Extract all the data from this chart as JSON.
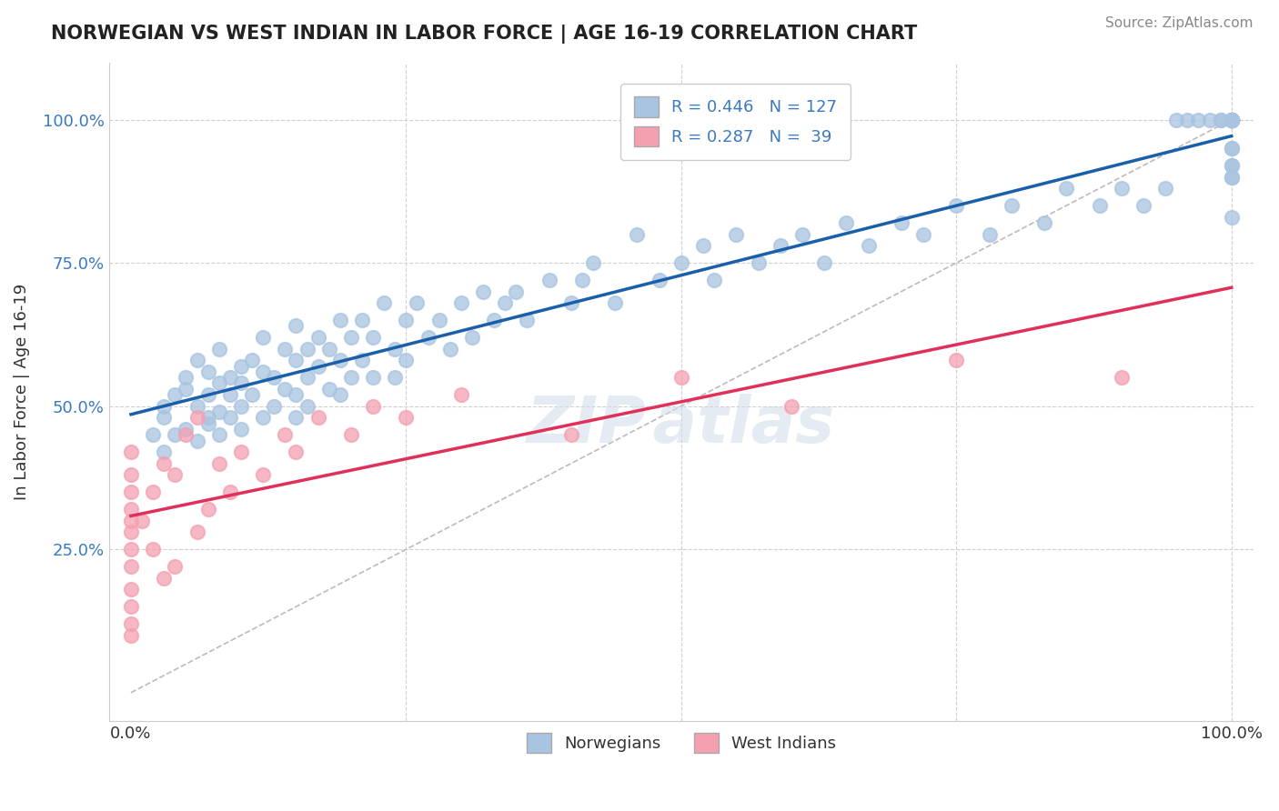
{
  "title": "NORWEGIAN VS WEST INDIAN IN LABOR FORCE | AGE 16-19 CORRELATION CHART",
  "source": "Source: ZipAtlas.com",
  "ylabel": "In Labor Force | Age 16-19",
  "xlim": [
    -0.02,
    1.02
  ],
  "ylim": [
    -0.05,
    1.1
  ],
  "norwegian_color": "#a8c4e0",
  "west_indian_color": "#f4a0b0",
  "norwegian_line_color": "#1a5faa",
  "west_indian_line_color": "#e0305a",
  "diagonal_color": "#c0c0c0",
  "R_norwegian": 0.446,
  "N_norwegian": 127,
  "R_west_indian": 0.287,
  "N_west_indian": 39,
  "legend_box_color_norwegian": "#a8c4e0",
  "legend_box_color_west_indian": "#f4a0b0",
  "legend_text_color": "#3a7abf",
  "title_color": "#222222",
  "grid_color": "#d0d0d0",
  "background_color": "#ffffff",
  "norwegian_x": [
    0.02,
    0.03,
    0.03,
    0.03,
    0.04,
    0.04,
    0.05,
    0.05,
    0.05,
    0.06,
    0.06,
    0.06,
    0.07,
    0.07,
    0.07,
    0.07,
    0.08,
    0.08,
    0.08,
    0.08,
    0.09,
    0.09,
    0.09,
    0.1,
    0.1,
    0.1,
    0.1,
    0.11,
    0.11,
    0.12,
    0.12,
    0.12,
    0.13,
    0.13,
    0.14,
    0.14,
    0.15,
    0.15,
    0.15,
    0.15,
    0.16,
    0.16,
    0.16,
    0.17,
    0.17,
    0.18,
    0.18,
    0.19,
    0.19,
    0.19,
    0.2,
    0.2,
    0.21,
    0.21,
    0.22,
    0.22,
    0.23,
    0.24,
    0.24,
    0.25,
    0.25,
    0.26,
    0.27,
    0.28,
    0.29,
    0.3,
    0.31,
    0.32,
    0.33,
    0.34,
    0.35,
    0.36,
    0.38,
    0.4,
    0.41,
    0.42,
    0.44,
    0.46,
    0.48,
    0.5,
    0.52,
    0.53,
    0.55,
    0.57,
    0.59,
    0.61,
    0.63,
    0.65,
    0.67,
    0.7,
    0.72,
    0.75,
    0.78,
    0.8,
    0.83,
    0.85,
    0.88,
    0.9,
    0.92,
    0.94,
    0.95,
    0.96,
    0.97,
    0.98,
    0.99,
    0.99,
    1.0,
    1.0,
    1.0,
    1.0,
    1.0,
    1.0,
    1.0,
    1.0,
    1.0,
    1.0,
    1.0,
    1.0,
    1.0,
    1.0,
    1.0,
    1.0,
    1.0,
    1.0,
    1.0,
    1.0,
    1.0
  ],
  "norwegian_y": [
    0.45,
    0.48,
    0.42,
    0.5,
    0.52,
    0.45,
    0.53,
    0.46,
    0.55,
    0.5,
    0.44,
    0.58,
    0.52,
    0.47,
    0.56,
    0.48,
    0.54,
    0.49,
    0.6,
    0.45,
    0.55,
    0.52,
    0.48,
    0.57,
    0.5,
    0.54,
    0.46,
    0.58,
    0.52,
    0.56,
    0.48,
    0.62,
    0.55,
    0.5,
    0.6,
    0.53,
    0.58,
    0.52,
    0.64,
    0.48,
    0.6,
    0.55,
    0.5,
    0.62,
    0.57,
    0.6,
    0.53,
    0.65,
    0.58,
    0.52,
    0.62,
    0.55,
    0.65,
    0.58,
    0.62,
    0.55,
    0.68,
    0.6,
    0.55,
    0.65,
    0.58,
    0.68,
    0.62,
    0.65,
    0.6,
    0.68,
    0.62,
    0.7,
    0.65,
    0.68,
    0.7,
    0.65,
    0.72,
    0.68,
    0.72,
    0.75,
    0.68,
    0.8,
    0.72,
    0.75,
    0.78,
    0.72,
    0.8,
    0.75,
    0.78,
    0.8,
    0.75,
    0.82,
    0.78,
    0.82,
    0.8,
    0.85,
    0.8,
    0.85,
    0.82,
    0.88,
    0.85,
    0.88,
    0.85,
    0.88,
    1.0,
    1.0,
    1.0,
    1.0,
    1.0,
    1.0,
    1.0,
    1.0,
    1.0,
    1.0,
    1.0,
    1.0,
    1.0,
    1.0,
    1.0,
    1.0,
    1.0,
    1.0,
    1.0,
    1.0,
    0.83,
    0.9,
    0.95,
    0.92,
    0.9,
    0.95,
    0.92
  ],
  "west_indian_x": [
    0.0,
    0.0,
    0.0,
    0.0,
    0.0,
    0.0,
    0.0,
    0.0,
    0.0,
    0.0,
    0.0,
    0.0,
    0.01,
    0.02,
    0.02,
    0.03,
    0.03,
    0.04,
    0.04,
    0.05,
    0.06,
    0.06,
    0.07,
    0.08,
    0.09,
    0.1,
    0.12,
    0.14,
    0.15,
    0.17,
    0.2,
    0.22,
    0.25,
    0.3,
    0.4,
    0.5,
    0.6,
    0.75,
    0.9
  ],
  "west_indian_y": [
    0.1,
    0.12,
    0.15,
    0.18,
    0.22,
    0.25,
    0.28,
    0.3,
    0.32,
    0.35,
    0.38,
    0.42,
    0.3,
    0.25,
    0.35,
    0.2,
    0.4,
    0.22,
    0.38,
    0.45,
    0.28,
    0.48,
    0.32,
    0.4,
    0.35,
    0.42,
    0.38,
    0.45,
    0.42,
    0.48,
    0.45,
    0.5,
    0.48,
    0.52,
    0.45,
    0.55,
    0.5,
    0.58,
    0.55
  ]
}
